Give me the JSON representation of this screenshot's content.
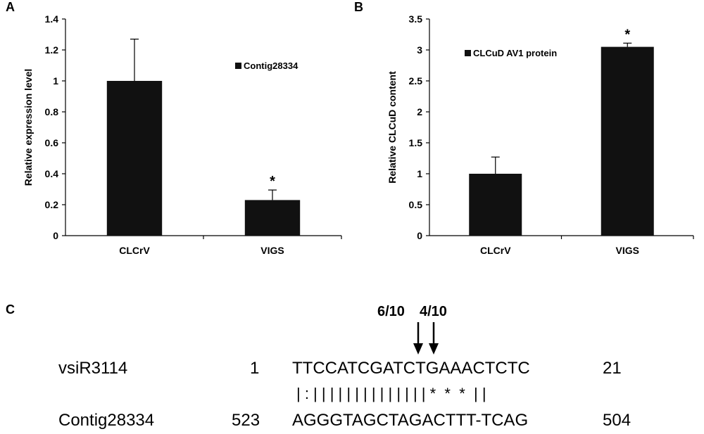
{
  "panels": {
    "a": "A",
    "b": "B",
    "c": "C"
  },
  "chart_data": [
    {
      "type": "bar",
      "panel": "A",
      "categories": [
        "CLCrV",
        "VIGS"
      ],
      "series": [
        {
          "name": "Contig28334",
          "values": [
            1.0,
            0.23
          ],
          "errors": [
            0.27,
            0.065
          ]
        }
      ],
      "significance": [
        "",
        "*"
      ],
      "title": "",
      "xlabel": "",
      "ylabel": "Relative expression level",
      "ylim": [
        0,
        1.4
      ],
      "yticks": [
        0,
        0.2,
        0.4,
        0.6,
        0.8,
        1,
        1.2,
        1.4
      ],
      "yticklabels": [
        "0",
        "0.2",
        "0.4",
        "0.6",
        "0.8",
        "1",
        "1.2",
        "1.4"
      ],
      "bar_color": "#111111",
      "legend": "top-right",
      "grid": false
    },
    {
      "type": "bar",
      "panel": "B",
      "categories": [
        "CLCrV",
        "VIGS"
      ],
      "series": [
        {
          "name": "CLCuD AV1 protein",
          "values": [
            1.0,
            3.05
          ],
          "errors": [
            0.27,
            0.06
          ]
        }
      ],
      "significance": [
        "",
        "*"
      ],
      "title": "",
      "xlabel": "",
      "ylabel": "Relative CLCuD content",
      "ylim": [
        0,
        3.5
      ],
      "yticks": [
        0,
        0.5,
        1,
        1.5,
        2,
        2.5,
        3,
        3.5
      ],
      "yticklabels": [
        "0",
        "0.5",
        "1",
        "1.5",
        "2",
        "2.5",
        "3",
        "3.5"
      ],
      "bar_color": "#111111",
      "legend": "top-left",
      "grid": false
    }
  ],
  "alignment": {
    "cleavage_labels": [
      "6/10",
      "4/10"
    ],
    "query": {
      "name": "vsiR3114",
      "start": "1",
      "seq": "TTCCATCGATCTGAAACTCTC",
      "end": "21"
    },
    "match": "| : | | | | | | | | | | | | | | *  *  *  | |",
    "target": {
      "name": "Contig28334",
      "start": "523",
      "seq": "AGGGTAGCTAGACTTT-TCAG",
      "end": "504"
    }
  }
}
